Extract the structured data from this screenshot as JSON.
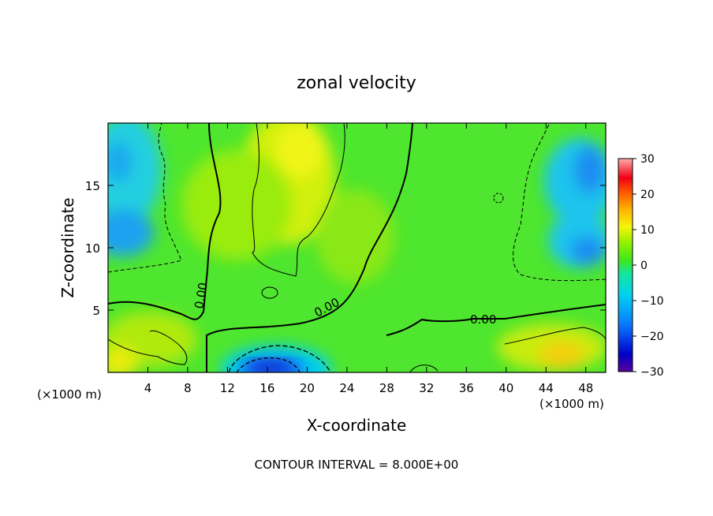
{
  "chart_data": {
    "type": "heatmap",
    "title": "zonal velocity",
    "xlabel": "X-coordinate",
    "ylabel": "Z-coordinate",
    "x_unit_left": "(×1000 m)",
    "x_unit_right": "(×1000 m)",
    "xlim": [
      0,
      50
    ],
    "ylim": [
      0,
      20
    ],
    "x_ticks": [
      "4",
      "8",
      "12",
      "16",
      "20",
      "24",
      "28",
      "32",
      "36",
      "40",
      "44",
      "48"
    ],
    "y_ticks": [
      "5",
      "10",
      "15"
    ],
    "colorbar": {
      "range": [
        -30,
        30
      ],
      "ticks": [
        "30",
        "20",
        "10",
        "0",
        "−10",
        "−20",
        "−30"
      ]
    },
    "contour_labels": [
      "0.00",
      "0.00",
      "0.00"
    ],
    "contour_interval_text": "CONTOUR INTERVAL = 8.000E+00",
    "grid": false,
    "legend": "right"
  }
}
